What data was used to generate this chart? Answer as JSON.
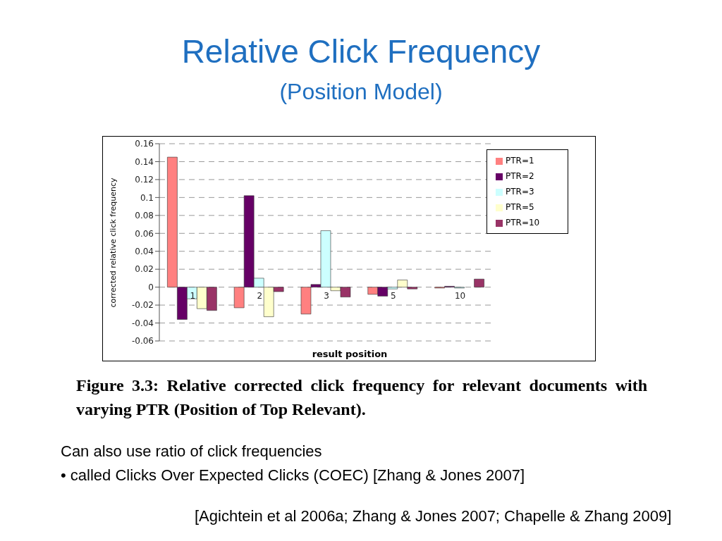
{
  "chart_data": {
    "type": "bar",
    "title": "Relative Click Frequency",
    "subtitle": "(Position Model)",
    "xlabel": "result position",
    "ylabel": "corrected relative click frequency",
    "categories": [
      "1",
      "2",
      "3",
      "5",
      "10"
    ],
    "series": [
      {
        "name": "PTR=1",
        "color": "#ff8080",
        "values": [
          0.145,
          -0.023,
          -0.03,
          -0.008,
          -0.001
        ]
      },
      {
        "name": "PTR=2",
        "color": "#660066",
        "values": [
          -0.036,
          0.102,
          0.003,
          -0.01,
          0.001
        ]
      },
      {
        "name": "PTR=3",
        "color": "#ccffff",
        "values": [
          -0.013,
          0.01,
          0.063,
          -0.002,
          -0.001
        ]
      },
      {
        "name": "PTR=5",
        "color": "#ffffcc",
        "values": [
          -0.024,
          -0.033,
          -0.004,
          0.008,
          0
        ]
      },
      {
        "name": "PTR=10",
        "color": "#993366",
        "values": [
          -0.026,
          -0.005,
          -0.011,
          -0.002,
          0.009
        ]
      }
    ],
    "ylim": [
      -0.06,
      0.16
    ],
    "yticks": [
      -0.06,
      -0.04,
      -0.02,
      0,
      0.02,
      0.04,
      0.06,
      0.08,
      0.1,
      0.12,
      0.14,
      0.16
    ],
    "grid": "y",
    "legend": "top right",
    "annotations": [
      "Figure 3.3: Relative corrected click frequency for relevant documents with varying PTR (Position of Top Relevant).",
      "Can also use ratio of click frequencies",
      "• called Clicks Over Expected Clicks (COEC) [Zhang & Jones 2007]",
      "[Agichtein et al 2006a; Zhang & Jones 2007; Chapelle & Zhang 2009]"
    ]
  }
}
